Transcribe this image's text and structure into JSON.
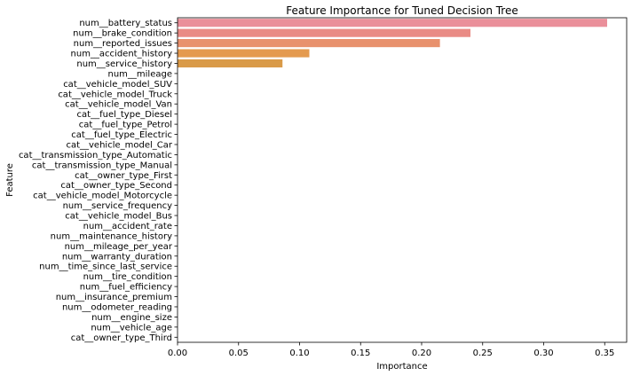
{
  "chart_data": {
    "type": "bar",
    "orientation": "horizontal",
    "title": "Feature Importance for Tuned Decision Tree",
    "xlabel": "Importance",
    "ylabel": "Feature",
    "xlim": [
      0,
      0.368
    ],
    "xticks": [
      "0.00",
      "0.05",
      "0.10",
      "0.15",
      "0.20",
      "0.25",
      "0.30",
      "0.35"
    ],
    "grid": false,
    "legend": "none",
    "categories": [
      "num__battery_status",
      "num__brake_condition",
      "num__reported_issues",
      "num__accident_history",
      "num__service_history",
      "num__mileage",
      "cat__vehicle_model_SUV",
      "cat__vehicle_model_Truck",
      "cat__vehicle_model_Van",
      "cat__fuel_type_Diesel",
      "cat__fuel_type_Petrol",
      "cat__fuel_type_Electric",
      "cat__vehicle_model_Car",
      "cat__transmission_type_Automatic",
      "cat__transmission_type_Manual",
      "cat__owner_type_First",
      "cat__owner_type_Second",
      "cat__vehicle_model_Motorcycle",
      "num__service_frequency",
      "cat__vehicle_model_Bus",
      "num__accident_rate",
      "num__maintenance_history",
      "num__mileage_per_year",
      "num__warranty_duration",
      "num__time_since_last_service",
      "num__tire_condition",
      "num__fuel_efficiency",
      "num__insurance_premium",
      "num__odometer_reading",
      "num__engine_size",
      "num__vehicle_age",
      "cat__owner_type_Third"
    ],
    "values": [
      0.352,
      0.24,
      0.215,
      0.108,
      0.086,
      0,
      0,
      0,
      0,
      0,
      0,
      0,
      0,
      0,
      0,
      0,
      0,
      0,
      0,
      0,
      0,
      0,
      0,
      0,
      0,
      0,
      0,
      0,
      0,
      0,
      0,
      0
    ],
    "colors": [
      "#ea8f9a",
      "#e98b85",
      "#e8916d",
      "#e49a4f",
      "#d99a48"
    ]
  }
}
